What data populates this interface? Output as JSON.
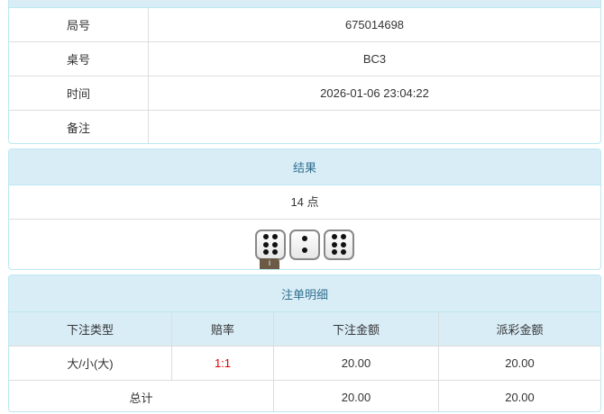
{
  "info": {
    "rows": [
      {
        "label": "局号",
        "value": "675014698"
      },
      {
        "label": "桌号",
        "value": "BC3"
      },
      {
        "label": "时间",
        "value": "2026-01-06 23:04:22"
      },
      {
        "label": "备注",
        "value": ""
      }
    ]
  },
  "result": {
    "title": "结果",
    "points": "14 点",
    "dice": [
      6,
      2,
      6
    ],
    "info_icon": "i"
  },
  "bets": {
    "title": "注单明细",
    "headers": [
      "下注类型",
      "赔率",
      "下注金额",
      "派彩金额"
    ],
    "rows": [
      {
        "type": "大/小(大)",
        "odds": "1:1",
        "amount": "20.00",
        "payout": "20.00"
      }
    ],
    "total": {
      "label": "总计",
      "amount": "20.00",
      "payout": "20.00"
    },
    "odds_color": "#e00000"
  }
}
